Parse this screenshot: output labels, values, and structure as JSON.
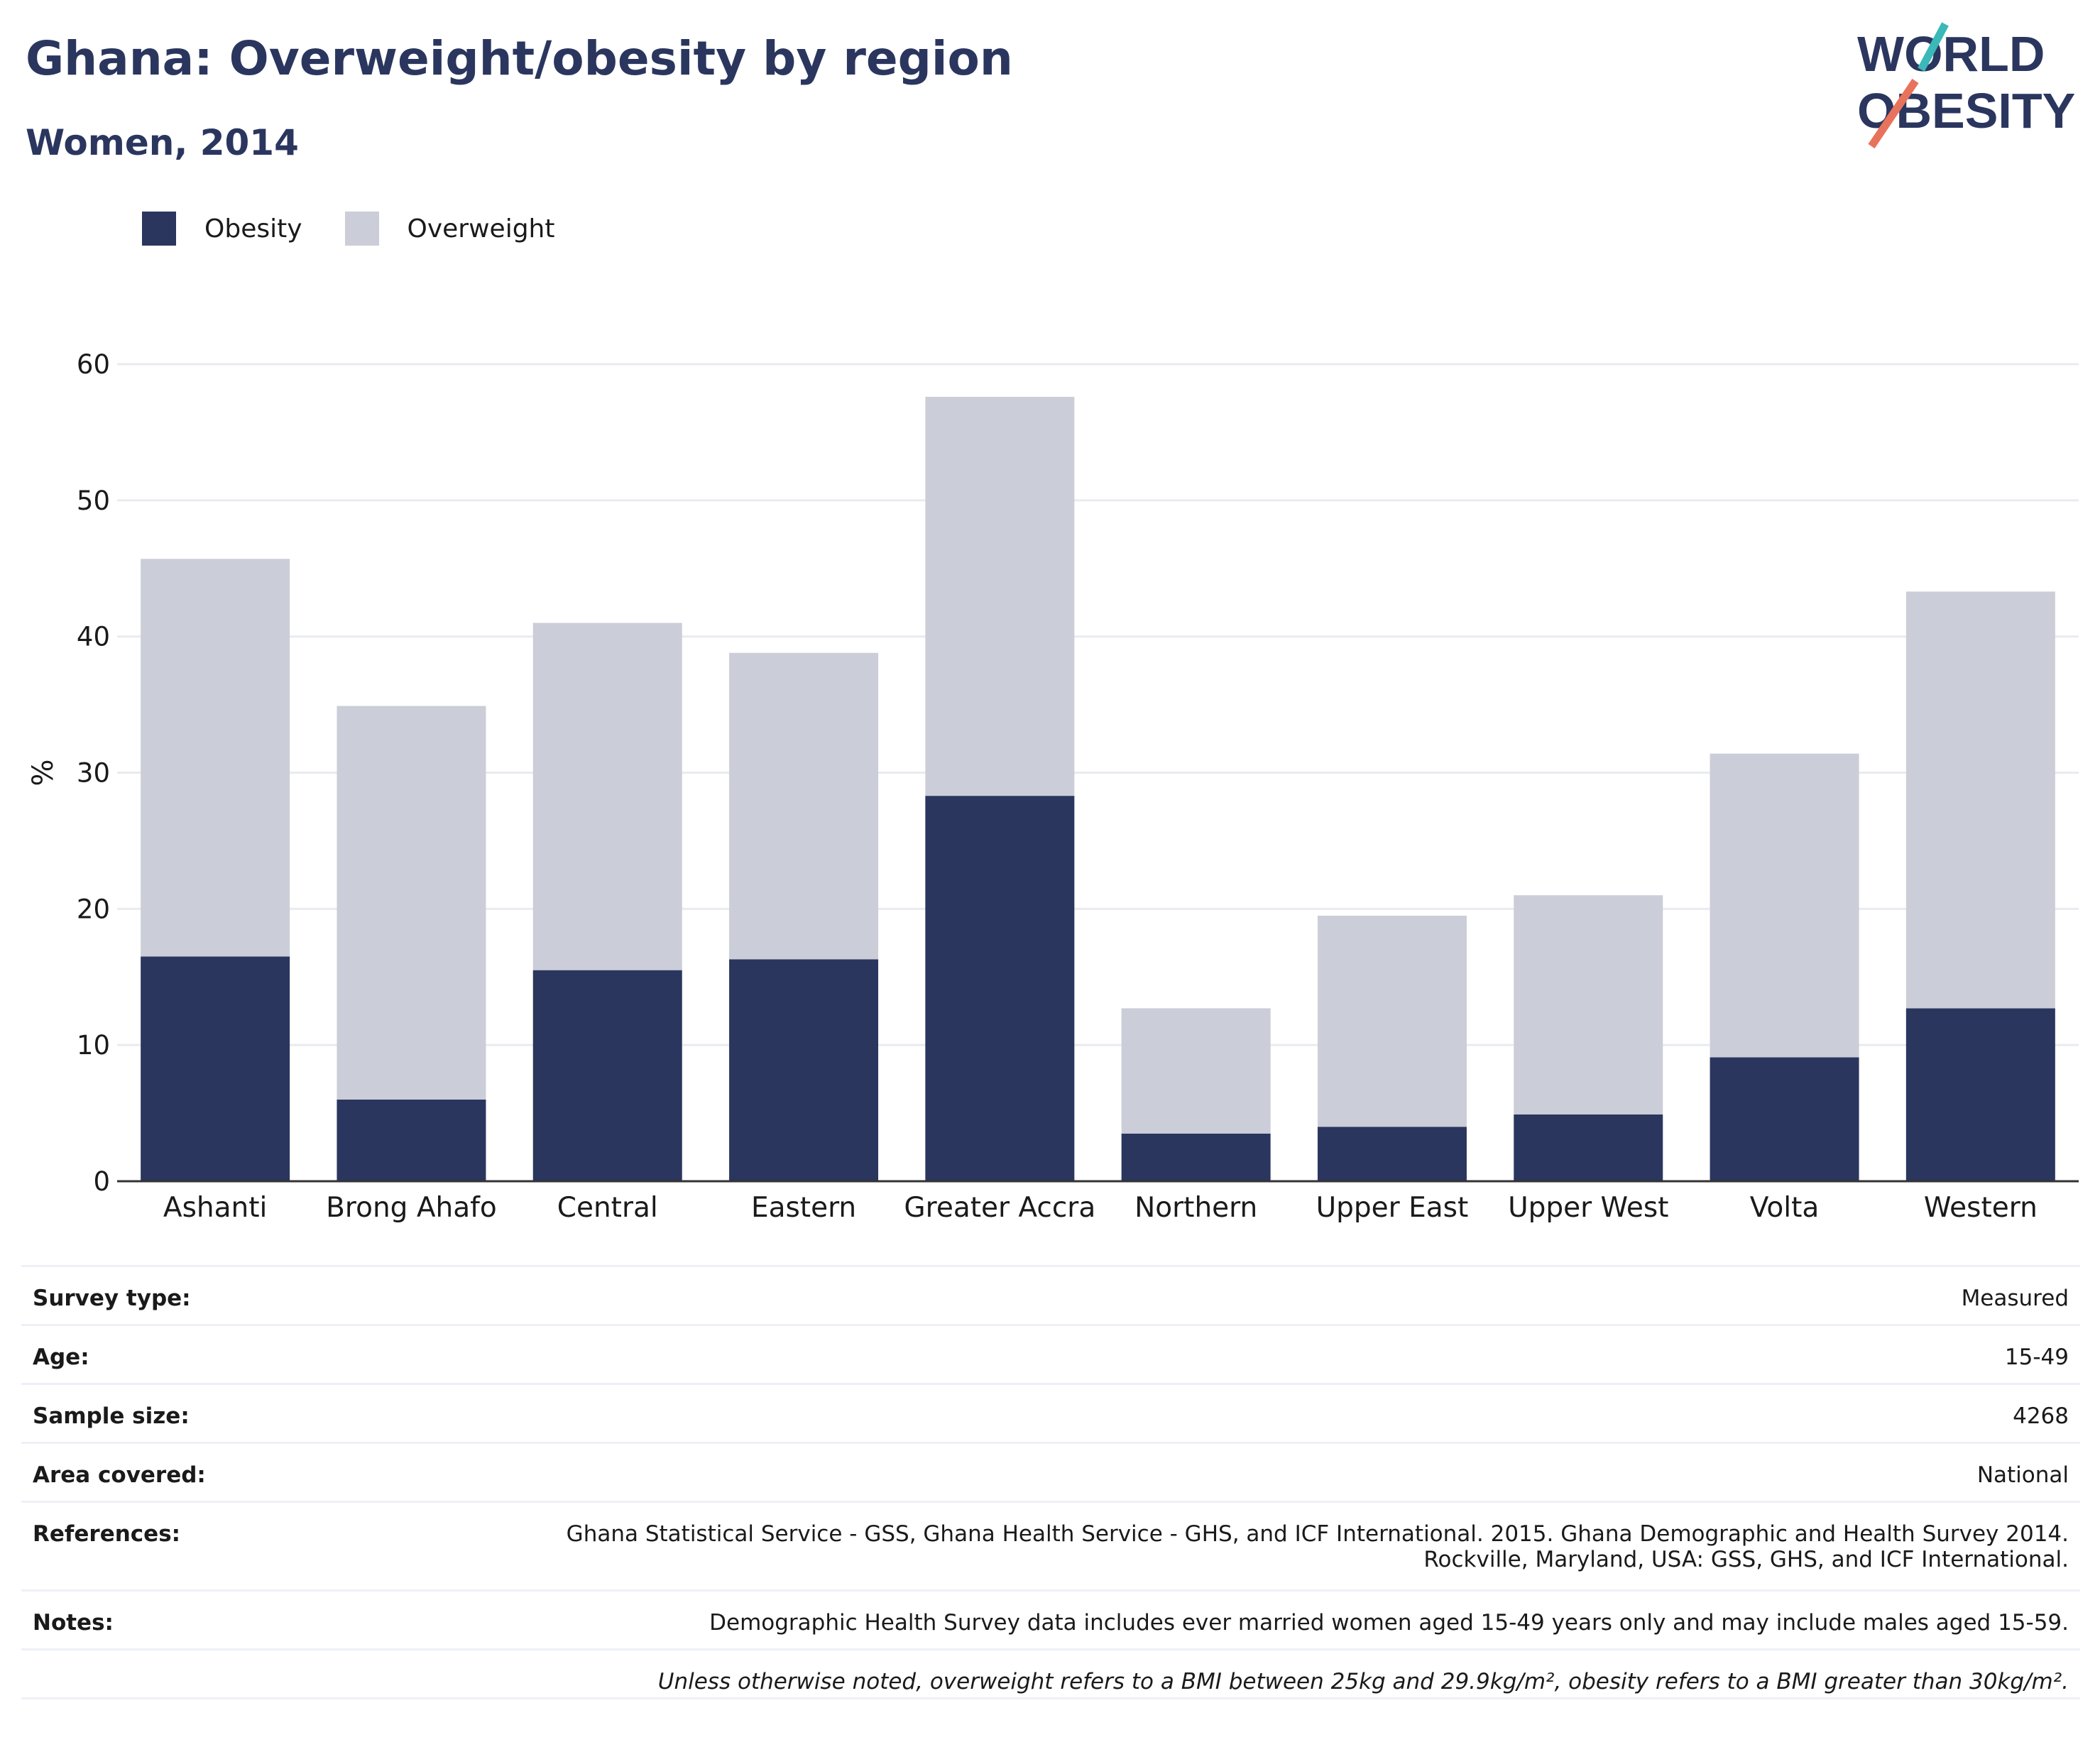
{
  "header": {
    "title": "Ghana: Overweight/obesity by region",
    "subtitle": "Women, 2014",
    "logo_line1": "WORLD",
    "logo_line2": "OBESITY"
  },
  "legend": {
    "items": [
      {
        "label": "Obesity",
        "color": "#2b365f"
      },
      {
        "label": "Overweight",
        "color": "#cbcdd8"
      }
    ]
  },
  "chart_data": {
    "type": "bar",
    "stacked": true,
    "title": "Ghana: Overweight/obesity by region",
    "subtitle": "Women, 2014",
    "xlabel": "",
    "ylabel": "%",
    "ylim": [
      0,
      60
    ],
    "yticks": [
      0,
      10,
      20,
      30,
      40,
      50,
      60
    ],
    "grid": true,
    "legend_position": "top-left",
    "categories": [
      "Ashanti",
      "Brong Ahafo",
      "Central",
      "Eastern",
      "Greater Accra",
      "Northern",
      "Upper East",
      "Upper West",
      "Volta",
      "Western"
    ],
    "series": [
      {
        "name": "Obesity",
        "color": "#2b365f",
        "values": [
          16.5,
          6.0,
          15.5,
          16.3,
          28.3,
          3.5,
          4.0,
          4.9,
          9.1,
          12.7
        ]
      },
      {
        "name": "Overweight",
        "color": "#cbcdd8",
        "values": [
          29.2,
          28.9,
          25.5,
          22.5,
          29.3,
          9.2,
          15.5,
          16.1,
          22.3,
          30.6
        ]
      }
    ]
  },
  "info": {
    "rows": [
      {
        "label": "Survey type:",
        "value": "Measured"
      },
      {
        "label": "Age:",
        "value": "15-49"
      },
      {
        "label": "Sample size:",
        "value": "4268"
      },
      {
        "label": "Area covered:",
        "value": "National"
      }
    ],
    "references_label": "References:",
    "references_line1": "Ghana Statistical Service - GSS, Ghana Health Service - GHS, and ICF International. 2015. Ghana Demographic and Health Survey 2014.",
    "references_line2": "Rockville, Maryland, USA: GSS, GHS, and ICF International.",
    "notes_label": "Notes:",
    "notes_value": "Demographic Health Survey data includes ever married women aged 15-49 years only and may include males aged 15-59.",
    "footnote": "Unless otherwise noted, overweight refers to a BMI between 25kg and 29.9kg/m², obesity refers to a BMI greater than 30kg/m²."
  },
  "colors": {
    "brand": "#2b365f",
    "logo_teal": "#3bb8b8",
    "logo_coral": "#e8735c"
  }
}
